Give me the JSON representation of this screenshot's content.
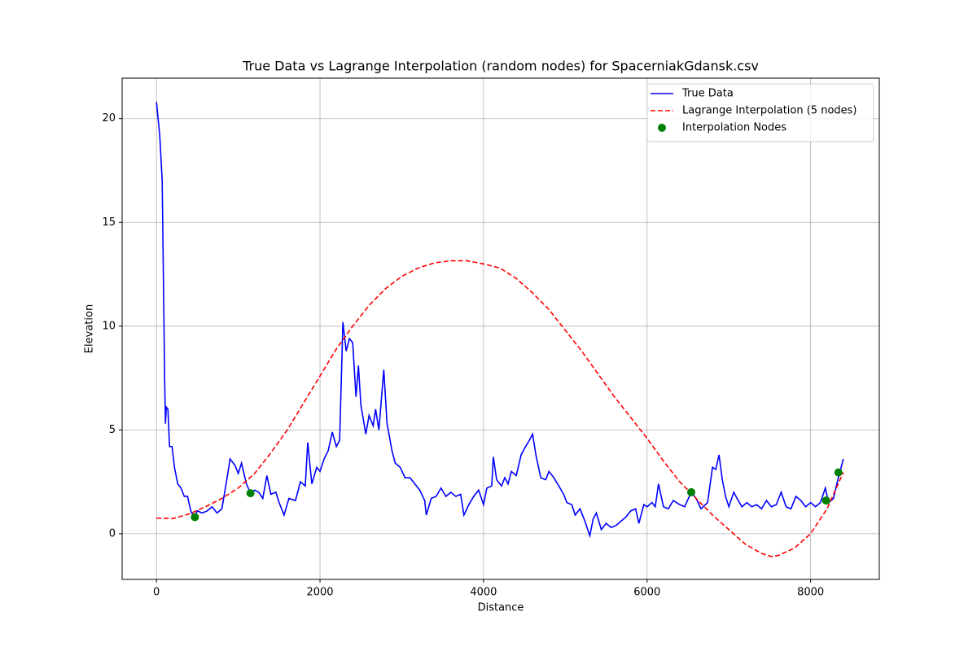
{
  "chart_data": {
    "type": "line",
    "title": "True Data vs Lagrange Interpolation (random nodes) for SpacerniakGdansk.csv",
    "x_label": "Distance",
    "y_label": "Elevation",
    "xlim": [
      -420,
      8840
    ],
    "ylim": [
      -2.2,
      21.95
    ],
    "xticks": [
      0,
      2000,
      4000,
      6000,
      8000
    ],
    "yticks": [
      0,
      5,
      10,
      15,
      20
    ],
    "grid": true,
    "legend": "upper right",
    "series": [
      {
        "name": "True Data",
        "type": "line",
        "color": "#0000ff",
        "dashed": false,
        "x": [
          0,
          40,
          70,
          100,
          110,
          120,
          140,
          160,
          190,
          220,
          260,
          300,
          340,
          380,
          420,
          460,
          500,
          560,
          620,
          680,
          740,
          800,
          860,
          900,
          960,
          1000,
          1040,
          1100,
          1150,
          1200,
          1250,
          1300,
          1350,
          1400,
          1460,
          1500,
          1560,
          1620,
          1700,
          1760,
          1820,
          1850,
          1900,
          1960,
          2000,
          2050,
          2100,
          2150,
          2200,
          2240,
          2280,
          2320,
          2360,
          2400,
          2440,
          2470,
          2500,
          2560,
          2600,
          2650,
          2680,
          2720,
          2780,
          2820,
          2880,
          2920,
          2980,
          3040,
          3100,
          3160,
          3220,
          3280,
          3300,
          3360,
          3420,
          3480,
          3540,
          3600,
          3660,
          3720,
          3760,
          3820,
          3880,
          3940,
          4000,
          4040,
          4100,
          4120,
          4160,
          4220,
          4260,
          4300,
          4340,
          4400,
          4460,
          4500,
          4560,
          4600,
          4640,
          4700,
          4760,
          4800,
          4860,
          4920,
          4980,
          5020,
          5080,
          5120,
          5180,
          5240,
          5300,
          5340,
          5380,
          5440,
          5500,
          5560,
          5620,
          5680,
          5740,
          5800,
          5860,
          5900,
          5960,
          6000,
          6060,
          6100,
          6140,
          6200,
          6260,
          6320,
          6400,
          6460,
          6540,
          6600,
          6660,
          6740,
          6800,
          6840,
          6880,
          6920,
          6960,
          7000,
          7060,
          7100,
          7160,
          7220,
          7280,
          7340,
          7400,
          7460,
          7520,
          7580,
          7640,
          7700,
          7760,
          7820,
          7880,
          7940,
          8000,
          8060,
          8120,
          8180,
          8220,
          8280,
          8320,
          8360,
          8400
        ],
        "values": [
          20.8,
          19.2,
          17,
          7.5,
          5.3,
          6.1,
          6.0,
          4.2,
          4.2,
          3.2,
          2.4,
          2.2,
          1.8,
          1.8,
          1.1,
          0.8,
          1.1,
          1.0,
          1.1,
          1.3,
          1.0,
          1.2,
          2.6,
          3.6,
          3.3,
          2.9,
          3.4,
          2.4,
          1.95,
          2.1,
          2.0,
          1.7,
          2.8,
          1.9,
          2.0,
          1.5,
          0.9,
          1.7,
          1.6,
          2.5,
          2.3,
          4.4,
          2.4,
          3.2,
          3.0,
          3.6,
          4.0,
          4.9,
          4.2,
          4.5,
          10.2,
          8.8,
          9.4,
          9.2,
          6.6,
          8.1,
          6.2,
          4.8,
          5.7,
          5.2,
          6.0,
          5.0,
          7.9,
          5.3,
          4.0,
          3.4,
          3.2,
          2.7,
          2.7,
          2.4,
          2.1,
          1.6,
          0.9,
          1.7,
          1.8,
          2.2,
          1.8,
          2.0,
          1.8,
          1.9,
          0.9,
          1.4,
          1.8,
          2.1,
          1.4,
          2.2,
          2.3,
          3.7,
          2.6,
          2.3,
          2.7,
          2.4,
          3.0,
          2.8,
          3.8,
          4.1,
          4.5,
          4.8,
          3.8,
          2.7,
          2.6,
          3.0,
          2.7,
          2.3,
          1.9,
          1.5,
          1.4,
          0.9,
          1.2,
          0.6,
          -0.1,
          0.7,
          1.0,
          0.2,
          0.5,
          0.3,
          0.4,
          0.6,
          0.8,
          1.1,
          1.2,
          0.5,
          1.4,
          1.3,
          1.5,
          1.3,
          2.4,
          1.3,
          1.2,
          1.6,
          1.4,
          1.3,
          2.0,
          1.7,
          1.2,
          1.5,
          3.2,
          3.1,
          3.8,
          2.6,
          1.8,
          1.3,
          2.0,
          1.7,
          1.3,
          1.5,
          1.3,
          1.4,
          1.2,
          1.6,
          1.3,
          1.4,
          2.0,
          1.3,
          1.2,
          1.8,
          1.6,
          1.3,
          1.5,
          1.3,
          1.5,
          2.2,
          1.5,
          1.7,
          2.4,
          3.0,
          3.6
        ]
      },
      {
        "name": "Lagrange Interpolation (5 nodes)",
        "type": "line",
        "color": "#ff0000",
        "dashed": true,
        "x": [
          0,
          200,
          400,
          600,
          800,
          1000,
          1200,
          1400,
          1600,
          1800,
          2000,
          2200,
          2400,
          2600,
          2800,
          3000,
          3200,
          3400,
          3600,
          3800,
          4000,
          4200,
          4400,
          4600,
          4800,
          5000,
          5200,
          5400,
          5600,
          5800,
          6000,
          6200,
          6400,
          6600,
          6800,
          7000,
          7200,
          7400,
          7520,
          7600,
          7800,
          8000,
          8200,
          8400
        ],
        "values": [
          0.75,
          0.73,
          0.95,
          1.3,
          1.7,
          2.2,
          2.9,
          3.9,
          5.0,
          6.3,
          7.6,
          8.9,
          10.0,
          11.0,
          11.8,
          12.4,
          12.8,
          13.05,
          13.15,
          13.15,
          13.0,
          12.8,
          12.3,
          11.6,
          10.8,
          9.8,
          8.8,
          7.7,
          6.6,
          5.6,
          4.6,
          3.5,
          2.5,
          1.7,
          0.9,
          0.2,
          -0.5,
          -0.95,
          -1.1,
          -1.05,
          -0.7,
          0.0,
          1.2,
          2.95
        ]
      },
      {
        "name": "Interpolation Nodes",
        "type": "scatter",
        "color": "#008000",
        "x": [
          470,
          1150,
          6540,
          8190,
          8340
        ],
        "values": [
          0.8,
          1.95,
          2.0,
          1.6,
          2.95
        ]
      }
    ]
  }
}
